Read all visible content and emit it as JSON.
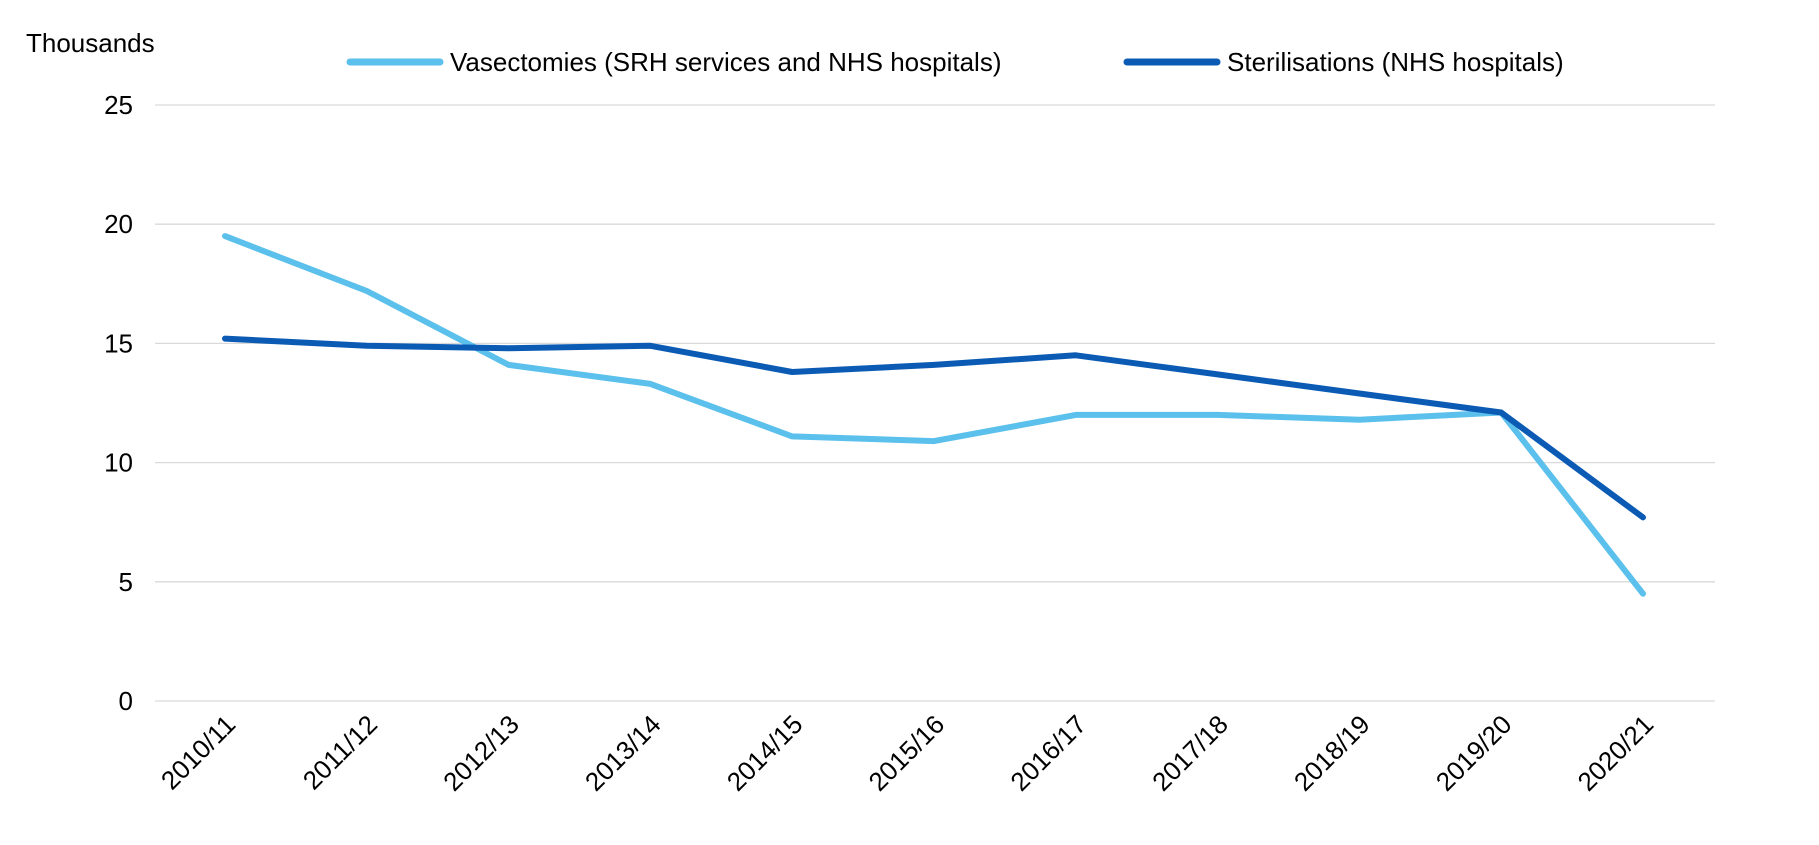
{
  "chart_data": {
    "type": "line",
    "title": "",
    "xlabel": "",
    "ylabel": "Thousands",
    "ylim": [
      0,
      25
    ],
    "yticks": [
      0,
      5,
      10,
      15,
      20,
      25
    ],
    "grid": true,
    "legend_position": "top",
    "categories": [
      "2010/11",
      "2011/12",
      "2012/13",
      "2013/14",
      "2014/15",
      "2015/16",
      "2016/17",
      "2017/18",
      "2018/19",
      "2019/20",
      "2020/21"
    ],
    "series": [
      {
        "name": "Vasectomies (SRH services and NHS hospitals)",
        "color": "#5bc0eb",
        "values": [
          19.5,
          17.2,
          14.1,
          13.3,
          11.1,
          10.9,
          12.0,
          12.0,
          11.8,
          12.1,
          4.5
        ]
      },
      {
        "name": "Sterilisations (NHS hospitals)",
        "color": "#0b5bb5",
        "values": [
          15.2,
          14.9,
          14.8,
          14.9,
          13.8,
          14.1,
          14.5,
          13.7,
          12.9,
          12.1,
          7.7
        ]
      }
    ]
  }
}
